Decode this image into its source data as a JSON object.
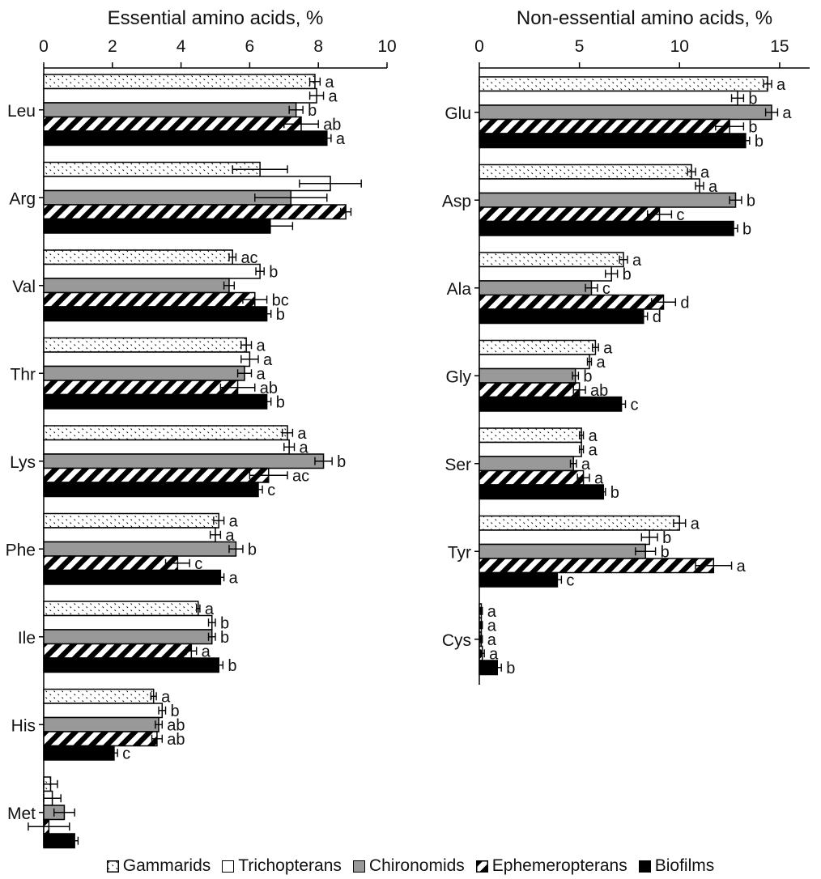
{
  "legend": {
    "gammarids": "Gammarids",
    "trichopterans": "Trichopterans",
    "chironomids": "Chironomids",
    "ephemeropterans": "Ephemeropterans",
    "biofilms": "Biofilms"
  },
  "colors": {
    "chironomids": "#999999",
    "biofilms": "#000000",
    "trichopterans": "#ffffff",
    "outline": "#000000"
  },
  "chart_data": [
    {
      "type": "bar",
      "orientation": "horizontal",
      "title": "Essential amino acids, %",
      "xlim": [
        0,
        10
      ],
      "xticks": [
        0,
        2,
        4,
        6,
        8,
        10
      ],
      "grid": false,
      "legend_position": "bottom",
      "categories": [
        "Leu",
        "Arg",
        "Val",
        "Thr",
        "Lys",
        "Phe",
        "Ile",
        "His",
        "Met"
      ],
      "series": [
        {
          "name": "Gammarids",
          "values": [
            7.9,
            6.3,
            5.5,
            5.9,
            7.1,
            5.1,
            4.5,
            3.2,
            0.2
          ],
          "errors": [
            0.15,
            0.8,
            0.1,
            0.15,
            0.15,
            0.15,
            0.05,
            0.08,
            0.2
          ],
          "letters": [
            "a",
            "",
            "ac",
            "a",
            "a",
            "a",
            "a",
            "a",
            ""
          ]
        },
        {
          "name": "Trichopterans",
          "values": [
            7.95,
            8.35,
            6.3,
            6.0,
            7.15,
            5.0,
            4.9,
            3.45,
            0.25
          ],
          "errors": [
            0.2,
            0.9,
            0.12,
            0.25,
            0.15,
            0.15,
            0.1,
            0.1,
            0.25
          ],
          "letters": [
            "a",
            "",
            "b",
            "a",
            "a",
            "a",
            "b",
            "b",
            ""
          ]
        },
        {
          "name": "Chironomids",
          "values": [
            7.35,
            7.2,
            5.4,
            5.85,
            8.15,
            5.6,
            4.9,
            3.35,
            0.6
          ],
          "errors": [
            0.2,
            1.05,
            0.15,
            0.2,
            0.25,
            0.2,
            0.1,
            0.1,
            0.3
          ],
          "letters": [
            "b",
            "",
            "",
            "a",
            "b",
            "b",
            "b",
            "ab",
            ""
          ]
        },
        {
          "name": "Ephemeropterans",
          "values": [
            7.5,
            8.8,
            6.15,
            5.65,
            6.55,
            3.9,
            4.3,
            3.3,
            0.15
          ],
          "errors": [
            0.5,
            0.15,
            0.35,
            0.5,
            0.55,
            0.35,
            0.15,
            0.15,
            0.6
          ],
          "letters": [
            "ab",
            "",
            "bc",
            "ab",
            "ac",
            "c",
            "a",
            "ab",
            ""
          ]
        },
        {
          "name": "Biofilms",
          "values": [
            8.25,
            6.6,
            6.5,
            6.5,
            6.25,
            5.15,
            5.1,
            2.05,
            0.9
          ],
          "errors": [
            0.12,
            0.65,
            0.12,
            0.12,
            0.12,
            0.1,
            0.12,
            0.1,
            0.1
          ],
          "letters": [
            "a",
            "",
            "b",
            "b",
            "c",
            "a",
            "b",
            "c",
            ""
          ]
        }
      ]
    },
    {
      "type": "bar",
      "orientation": "horizontal",
      "title": "Non-essential amino acids, %",
      "xlim": [
        0,
        16.5
      ],
      "xticks": [
        0,
        5,
        10,
        15
      ],
      "grid": false,
      "legend_position": "bottom",
      "categories": [
        "Glu",
        "Asp",
        "Ala",
        "Gly",
        "Ser",
        "Tyr",
        "Cys"
      ],
      "series": [
        {
          "name": "Gammarids",
          "values": [
            14.4,
            10.6,
            7.2,
            5.8,
            5.1,
            10.0,
            0.1
          ],
          "errors": [
            0.2,
            0.2,
            0.2,
            0.15,
            0.1,
            0.3,
            0.05
          ],
          "letters": [
            "a",
            "a",
            "a",
            "a",
            "a",
            "a",
            "a"
          ]
        },
        {
          "name": "Trichopterans",
          "values": [
            12.9,
            11.0,
            6.6,
            5.5,
            5.1,
            8.5,
            0.1
          ],
          "errors": [
            0.3,
            0.2,
            0.3,
            0.1,
            0.1,
            0.4,
            0.05
          ],
          "letters": [
            "b",
            "a",
            "b",
            "a",
            "a",
            "b",
            "a"
          ]
        },
        {
          "name": "Chironomids",
          "values": [
            14.6,
            12.8,
            5.6,
            4.8,
            4.7,
            8.3,
            0.1
          ],
          "errors": [
            0.3,
            0.3,
            0.3,
            0.15,
            0.15,
            0.5,
            0.05
          ],
          "letters": [
            "a",
            "b",
            "c",
            "b",
            "a",
            "b",
            "a"
          ]
        },
        {
          "name": "Ephemeropterans",
          "values": [
            12.5,
            9.0,
            9.2,
            5.0,
            5.2,
            11.7,
            0.15
          ],
          "errors": [
            0.7,
            0.6,
            0.6,
            0.3,
            0.3,
            0.9,
            0.1
          ],
          "letters": [
            "b",
            "c",
            "d",
            "ab",
            "a",
            "a",
            "a"
          ]
        },
        {
          "name": "Biofilms",
          "values": [
            13.3,
            12.7,
            8.2,
            7.1,
            6.2,
            3.9,
            0.9
          ],
          "errors": [
            0.2,
            0.2,
            0.2,
            0.2,
            0.1,
            0.2,
            0.2
          ],
          "letters": [
            "b",
            "b",
            "d",
            "c",
            "b",
            "c",
            "b"
          ]
        }
      ]
    }
  ]
}
